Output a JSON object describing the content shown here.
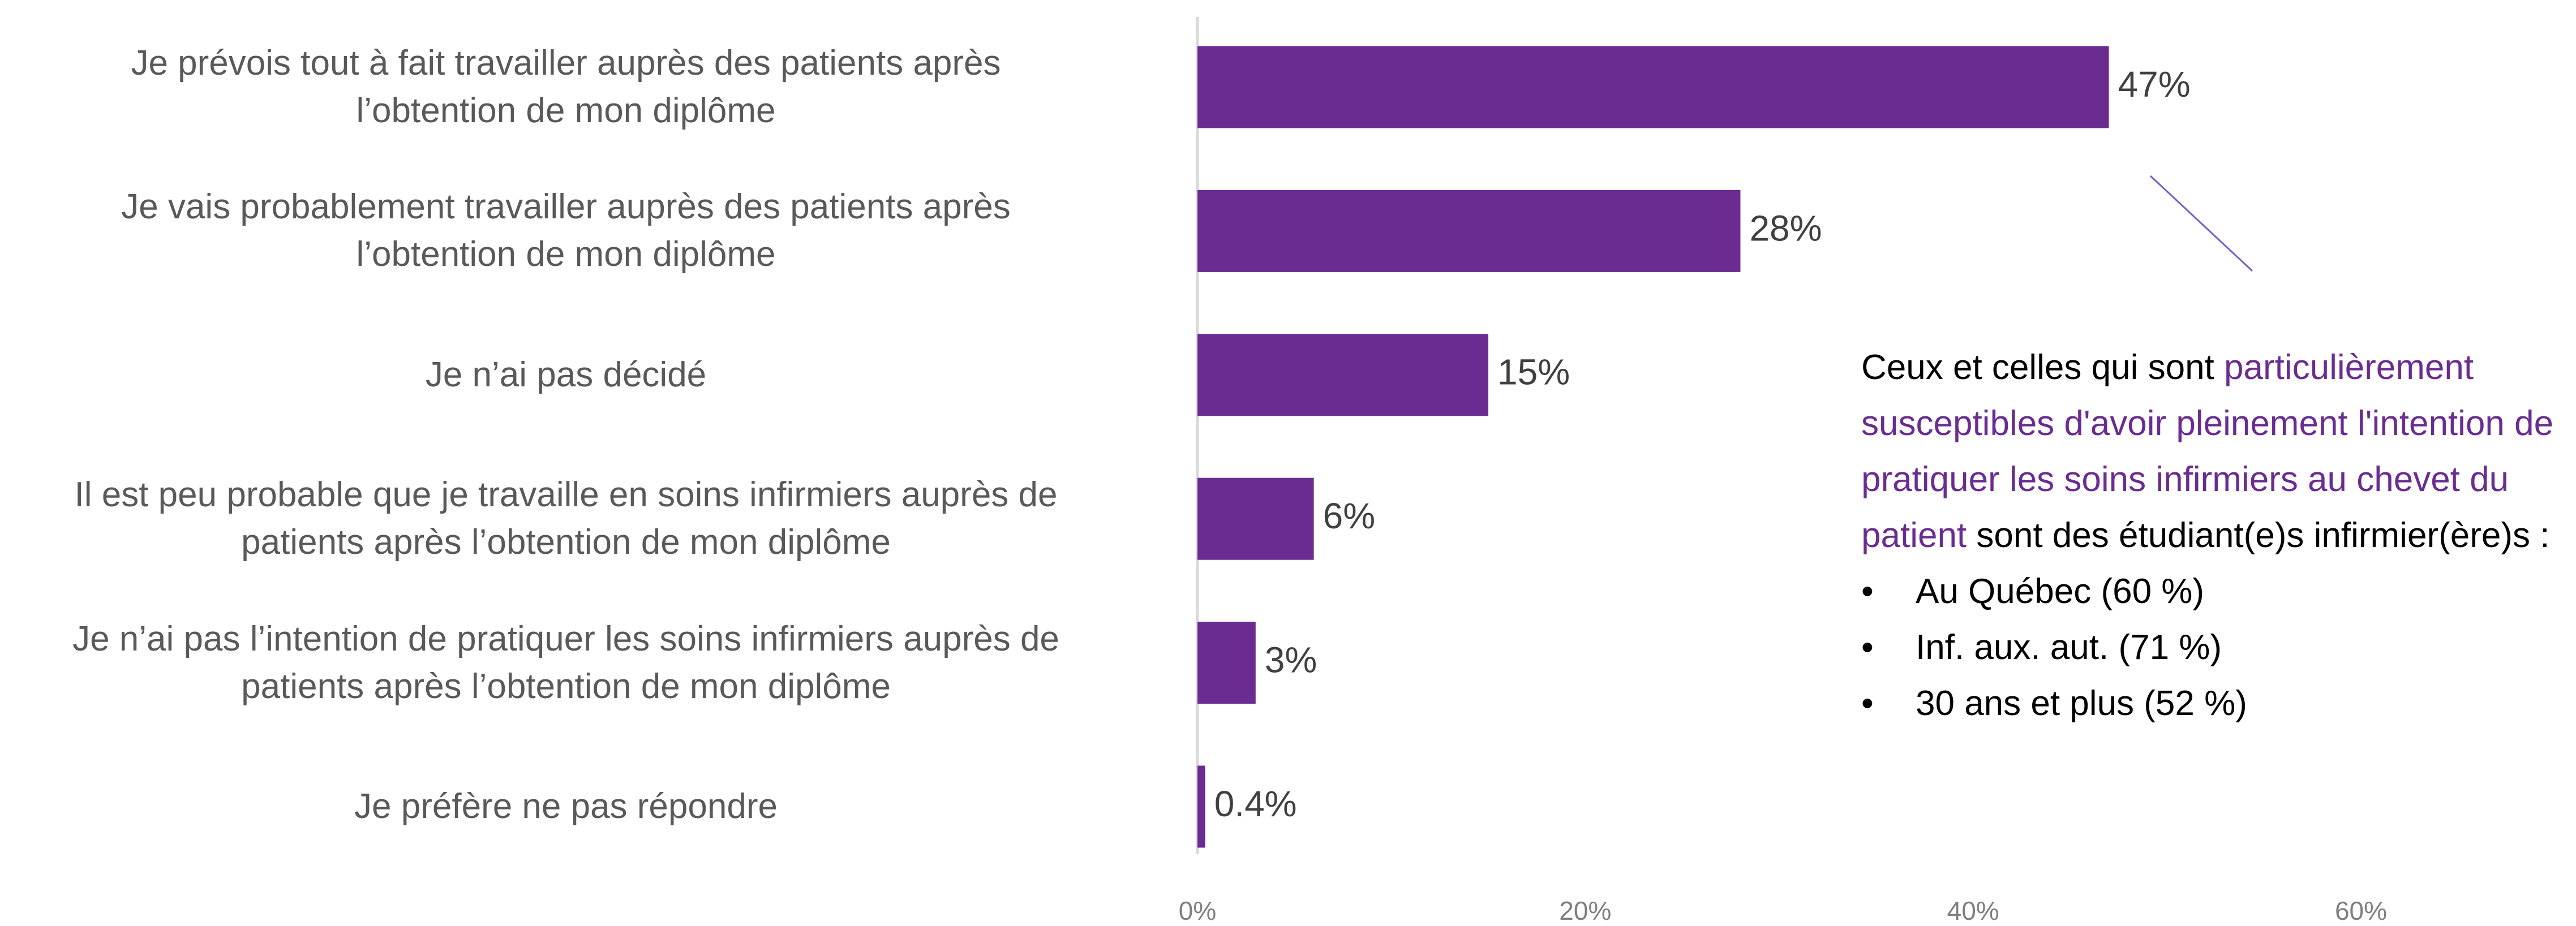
{
  "chart_data": {
    "type": "barh",
    "categories": [
      "Je prévois tout à fait travailler auprès des patients après \nl’obtention de mon diplôme",
      "Je vais probablement travailler auprès des patients après\nl’obtention de mon diplôme",
      "Je n’ai pas décidé",
      "Il est peu probable que je travaille en soins infirmiers auprès de\npatients après l’obtention de mon diplôme",
      "Je n’ai pas l’intention de pratiquer les soins infirmiers auprès de\npatients après l’obtention de mon diplôme",
      "Je préfère ne pas répondre"
    ],
    "values": [
      47,
      28,
      15,
      6,
      3,
      0.4
    ],
    "value_labels": [
      "47%",
      "28%",
      "15%",
      "6%",
      "3%",
      "0.4%"
    ],
    "color": "#6a2c91",
    "xlim": [
      0,
      60
    ],
    "xticks": [
      {
        "value": 0,
        "label": "0%"
      },
      {
        "value": 20,
        "label": "20%"
      },
      {
        "value": 40,
        "label": "40%"
      },
      {
        "value": 60,
        "label": "60%"
      }
    ],
    "grid": false,
    "annotation": {
      "text": [
        "Ceux et celles qui sont ",
        "particulièrement susceptibles d'avoir pleinement l'intention de pratiquer les soins infirmiers au chevet du patient",
        " sont des étudiant(e)s infirmier(ère)s :"
      ],
      "highlight_color": "#6a2c91",
      "bullets": [
        "Au Québec (60 %)",
        "Inf. aux. aut. (71 %)",
        "30 ans et plus (52 %)"
      ]
    }
  }
}
